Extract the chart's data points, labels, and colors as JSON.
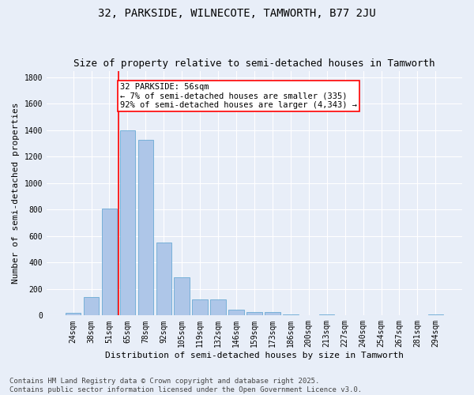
{
  "title1": "32, PARKSIDE, WILNECOTE, TAMWORTH, B77 2JU",
  "title2": "Size of property relative to semi-detached houses in Tamworth",
  "xlabel": "Distribution of semi-detached houses by size in Tamworth",
  "ylabel": "Number of semi-detached properties",
  "categories": [
    "24sqm",
    "38sqm",
    "51sqm",
    "65sqm",
    "78sqm",
    "92sqm",
    "105sqm",
    "119sqm",
    "132sqm",
    "146sqm",
    "159sqm",
    "173sqm",
    "186sqm",
    "200sqm",
    "213sqm",
    "227sqm",
    "240sqm",
    "254sqm",
    "267sqm",
    "281sqm",
    "294sqm"
  ],
  "values": [
    20,
    140,
    810,
    1400,
    1330,
    550,
    290,
    120,
    120,
    45,
    25,
    25,
    10,
    0,
    5,
    0,
    0,
    0,
    0,
    0,
    10
  ],
  "bar_color": "#aec6e8",
  "bar_edge_color": "#6aaad4",
  "vline_x": 2.5,
  "vline_color": "red",
  "annotation_text": "32 PARKSIDE: 56sqm\n← 7% of semi-detached houses are smaller (335)\n92% of semi-detached houses are larger (4,343) →",
  "annotation_box_color": "white",
  "annotation_box_edge_color": "red",
  "ylim": [
    0,
    1850
  ],
  "yticks": [
    0,
    200,
    400,
    600,
    800,
    1000,
    1200,
    1400,
    1600,
    1800
  ],
  "footnote": "Contains HM Land Registry data © Crown copyright and database right 2025.\nContains public sector information licensed under the Open Government Licence v3.0.",
  "bg_color": "#e8eef8",
  "grid_color": "#ffffff",
  "title_fontsize": 10,
  "subtitle_fontsize": 9,
  "axis_label_fontsize": 8,
  "tick_fontsize": 7,
  "footnote_fontsize": 6.5,
  "annotation_fontsize": 7.5
}
